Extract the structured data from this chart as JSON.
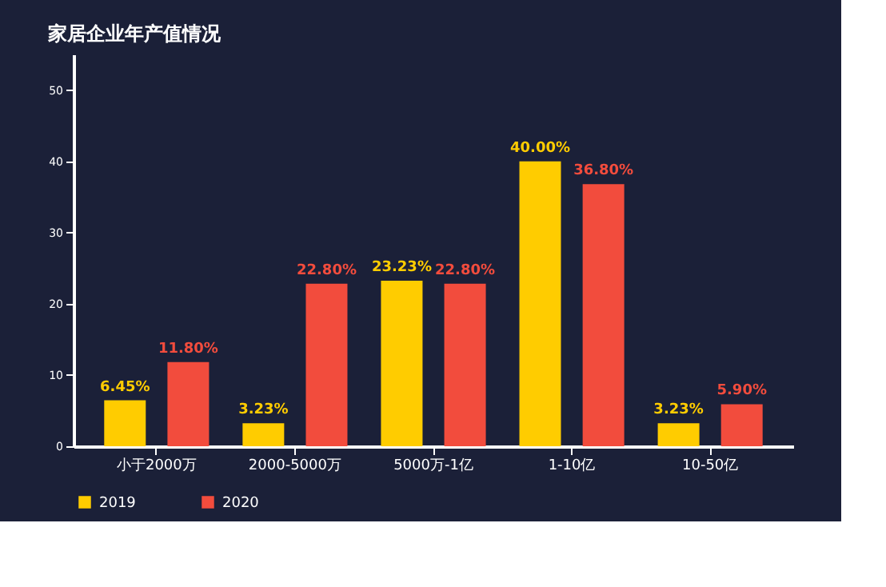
{
  "chart_data": {
    "type": "bar",
    "title": "家居企业年产值情况",
    "categories": [
      "小于2000万",
      "2000-5000万",
      "5000万-1亿",
      "1-10亿",
      "10-50亿"
    ],
    "series": [
      {
        "name": "2019",
        "color": "#ffcc00",
        "values": [
          6.45,
          3.23,
          23.23,
          40.0,
          3.23
        ],
        "value_labels": [
          "6.45%",
          "3.23%",
          "23.23%",
          "40.00%",
          "3.23%"
        ]
      },
      {
        "name": "2020",
        "color": "#f24c3d",
        "values": [
          11.8,
          22.8,
          22.8,
          36.8,
          5.9
        ],
        "value_labels": [
          "11.80%",
          "22.80%",
          "22.80%",
          "36.80%",
          "5.90%"
        ]
      }
    ],
    "ylim": [
      0,
      55
    ],
    "yticks": [
      0,
      10,
      20,
      30,
      40,
      50
    ],
    "grid": false,
    "legend": "bottom"
  }
}
